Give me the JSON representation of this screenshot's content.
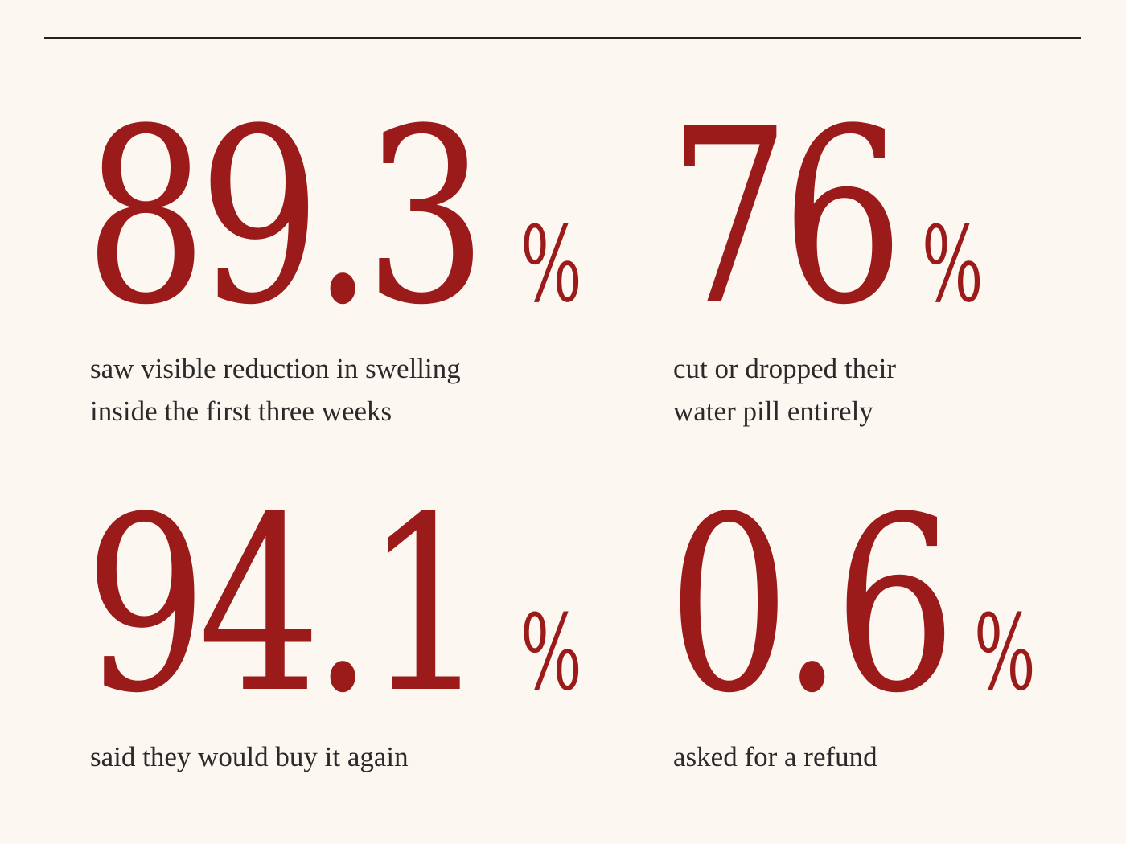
{
  "stats": [
    {
      "number": "89.3",
      "unit": "%",
      "caption_lines": [
        "saw visible reduction in swelling",
        "inside the first three weeks"
      ]
    },
    {
      "number": "76",
      "unit": "%",
      "caption_lines": [
        "cut or dropped their",
        "water pill entirely"
      ]
    },
    {
      "number": "94.1",
      "unit": "%",
      "caption_lines": [
        "said they would buy it again"
      ]
    },
    {
      "number": "0.6",
      "unit": "%",
      "caption_lines": [
        "asked for a refund"
      ]
    }
  ],
  "colors": {
    "background": "#fcf7f1",
    "accent": "#9b1a1a",
    "text": "#2a2a2a",
    "rule": "#222222"
  }
}
